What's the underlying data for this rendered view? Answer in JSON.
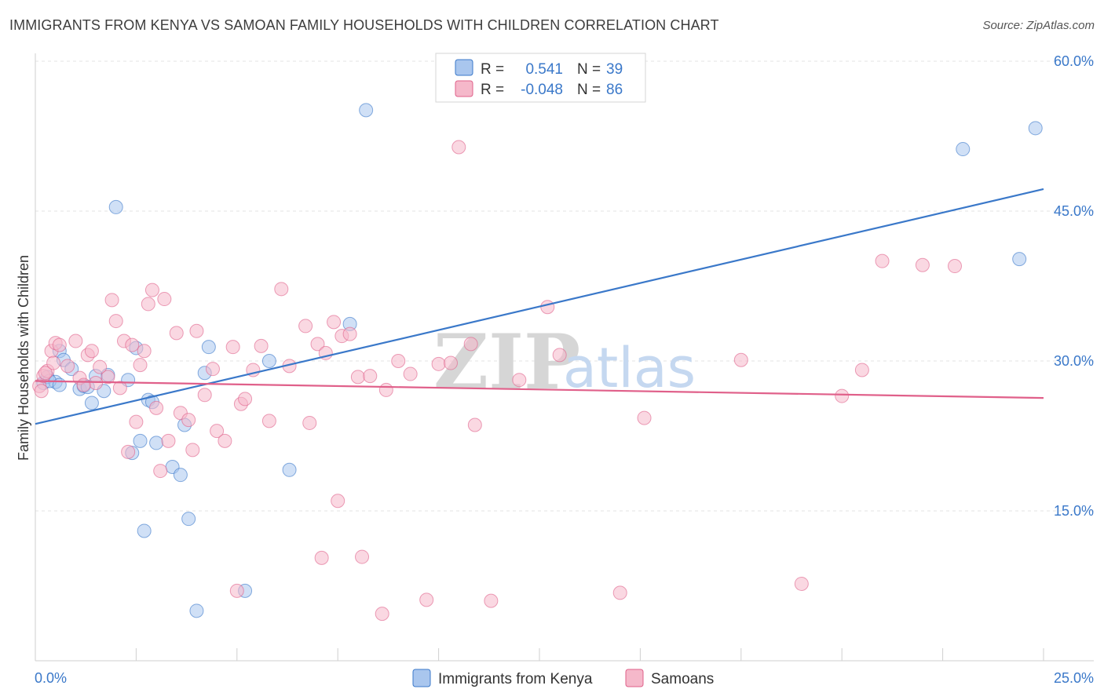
{
  "title": "IMMIGRANTS FROM KENYA VS SAMOAN FAMILY HOUSEHOLDS WITH CHILDREN CORRELATION CHART",
  "source": "Source: ZipAtlas.com",
  "watermark": {
    "zip": "ZIP",
    "atlas": "atlas"
  },
  "legend_top": {
    "rows": [
      {
        "r_label": "R =",
        "r_value": "0.541",
        "n_label": "N =",
        "n_value": "39",
        "color": "#a9c6ee"
      },
      {
        "r_label": "R =",
        "r_value": "-0.048",
        "n_label": "N =",
        "n_value": "86",
        "color": "#f5b8ca"
      }
    ]
  },
  "legend_bottom": {
    "items": [
      {
        "label": "Immigrants from Kenya",
        "color": "#a9c6ee"
      },
      {
        "label": "Samoans",
        "color": "#f5b8ca"
      }
    ]
  },
  "chart_data": {
    "type": "scatter",
    "xlabel": "",
    "ylabel": "Family Households with Children",
    "xlim": [
      0,
      25
    ],
    "ylim": [
      0,
      60
    ],
    "x_tick_labels": [
      "0.0%",
      "25.0%"
    ],
    "y_ticks": [
      15,
      30,
      45,
      60
    ],
    "y_tick_labels": [
      "15.0%",
      "30.0%",
      "45.0%",
      "60.0%"
    ],
    "grid": true,
    "series": [
      {
        "name": "Immigrants from Kenya",
        "color": "#3a78c9",
        "fill": "#a9c6ee",
        "trend": {
          "x": [
            0,
            25
          ],
          "y": [
            23.7,
            47.2
          ]
        },
        "points": [
          [
            0.2,
            27.8
          ],
          [
            0.3,
            28.4
          ],
          [
            0.5,
            27.9
          ],
          [
            0.6,
            31.0
          ],
          [
            0.7,
            30.1
          ],
          [
            0.9,
            29.2
          ],
          [
            1.1,
            27.2
          ],
          [
            1.2,
            27.5
          ],
          [
            1.4,
            25.8
          ],
          [
            1.5,
            28.5
          ],
          [
            1.7,
            27.0
          ],
          [
            1.8,
            28.6
          ],
          [
            2.0,
            45.4
          ],
          [
            2.3,
            28.1
          ],
          [
            2.4,
            20.8
          ],
          [
            2.5,
            31.3
          ],
          [
            2.6,
            22.0
          ],
          [
            2.7,
            13.0
          ],
          [
            2.8,
            26.1
          ],
          [
            2.9,
            25.9
          ],
          [
            3.0,
            21.8
          ],
          [
            3.4,
            19.4
          ],
          [
            3.6,
            18.6
          ],
          [
            3.7,
            23.6
          ],
          [
            3.8,
            14.2
          ],
          [
            4.0,
            5.0
          ],
          [
            4.2,
            28.8
          ],
          [
            4.3,
            31.4
          ],
          [
            5.2,
            7.0
          ],
          [
            5.8,
            30.0
          ],
          [
            6.3,
            19.1
          ],
          [
            7.8,
            33.7
          ],
          [
            8.2,
            55.1
          ],
          [
            23.0,
            51.2
          ],
          [
            24.4,
            40.2
          ],
          [
            24.8,
            53.3
          ],
          [
            0.35,
            28.0
          ],
          [
            0.6,
            27.6
          ],
          [
            1.3,
            27.4
          ]
        ]
      },
      {
        "name": "Samoans",
        "color": "#e0608a",
        "fill": "#f5b8ca",
        "trend": {
          "x": [
            0,
            25
          ],
          "y": [
            28.0,
            26.3
          ]
        },
        "points": [
          [
            0.1,
            27.5
          ],
          [
            0.2,
            28.5
          ],
          [
            0.3,
            29.0
          ],
          [
            0.4,
            31.0
          ],
          [
            0.5,
            31.8
          ],
          [
            0.6,
            31.6
          ],
          [
            0.8,
            29.5
          ],
          [
            1.0,
            32.0
          ],
          [
            1.1,
            28.3
          ],
          [
            1.3,
            30.6
          ],
          [
            1.4,
            31.0
          ],
          [
            1.5,
            27.8
          ],
          [
            1.6,
            29.4
          ],
          [
            1.8,
            28.4
          ],
          [
            1.9,
            36.1
          ],
          [
            2.0,
            34.0
          ],
          [
            2.1,
            27.3
          ],
          [
            2.2,
            32.0
          ],
          [
            2.3,
            20.9
          ],
          [
            2.4,
            31.6
          ],
          [
            2.5,
            23.9
          ],
          [
            2.6,
            29.6
          ],
          [
            2.7,
            31.0
          ],
          [
            2.8,
            35.7
          ],
          [
            2.9,
            37.1
          ],
          [
            3.0,
            25.3
          ],
          [
            3.1,
            19.0
          ],
          [
            3.2,
            36.2
          ],
          [
            3.3,
            22.0
          ],
          [
            3.5,
            32.8
          ],
          [
            3.6,
            24.8
          ],
          [
            3.8,
            24.1
          ],
          [
            3.9,
            21.1
          ],
          [
            4.0,
            33.0
          ],
          [
            4.2,
            26.6
          ],
          [
            4.4,
            29.2
          ],
          [
            4.5,
            23.0
          ],
          [
            4.7,
            22.0
          ],
          [
            4.9,
            31.4
          ],
          [
            5.0,
            7.0
          ],
          [
            5.1,
            25.7
          ],
          [
            5.2,
            26.2
          ],
          [
            5.4,
            29.1
          ],
          [
            5.6,
            31.5
          ],
          [
            5.8,
            24.0
          ],
          [
            6.1,
            37.2
          ],
          [
            6.3,
            29.5
          ],
          [
            6.7,
            33.5
          ],
          [
            6.8,
            23.8
          ],
          [
            7.0,
            31.7
          ],
          [
            7.1,
            10.3
          ],
          [
            7.2,
            30.8
          ],
          [
            7.4,
            33.9
          ],
          [
            7.5,
            16.0
          ],
          [
            7.6,
            32.5
          ],
          [
            7.8,
            32.7
          ],
          [
            8.0,
            28.4
          ],
          [
            8.1,
            10.4
          ],
          [
            8.3,
            28.5
          ],
          [
            8.6,
            4.7
          ],
          [
            8.7,
            27.1
          ],
          [
            9.0,
            30.0
          ],
          [
            9.3,
            28.7
          ],
          [
            9.7,
            6.1
          ],
          [
            10.0,
            29.7
          ],
          [
            10.3,
            29.8
          ],
          [
            10.5,
            51.4
          ],
          [
            10.8,
            31.7
          ],
          [
            10.9,
            23.6
          ],
          [
            11.3,
            6.0
          ],
          [
            12.0,
            28.1
          ],
          [
            12.7,
            35.4
          ],
          [
            13.0,
            30.6
          ],
          [
            14.5,
            6.8
          ],
          [
            15.1,
            24.3
          ],
          [
            17.5,
            30.1
          ],
          [
            19.0,
            7.7
          ],
          [
            20.0,
            26.5
          ],
          [
            20.5,
            29.1
          ],
          [
            21.0,
            40.0
          ],
          [
            22.0,
            39.6
          ],
          [
            22.8,
            39.5
          ],
          [
            0.15,
            27.0
          ],
          [
            0.25,
            28.8
          ],
          [
            0.45,
            29.8
          ],
          [
            1.2,
            27.6
          ]
        ]
      }
    ]
  }
}
